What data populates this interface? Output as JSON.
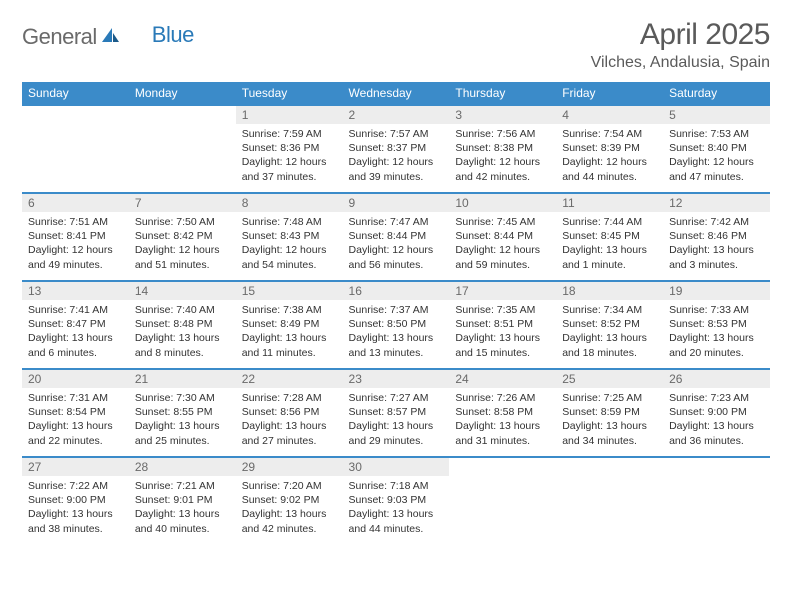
{
  "brand": {
    "left": "General",
    "right": "Blue"
  },
  "header": {
    "month_title": "April 2025",
    "location": "Vilches, Andalusia, Spain"
  },
  "colors": {
    "header_bg": "#3b8bc9",
    "header_text": "#ffffff",
    "daynum_bg": "#ededed",
    "daynum_text": "#6a6a6a",
    "cell_border": "#3b8bc9",
    "body_text": "#333333",
    "title_text": "#5a5a5a",
    "logo_gray": "#6a6a6a",
    "logo_blue": "#2a7ab8"
  },
  "day_names": [
    "Sunday",
    "Monday",
    "Tuesday",
    "Wednesday",
    "Thursday",
    "Friday",
    "Saturday"
  ],
  "weeks": [
    [
      null,
      null,
      {
        "n": "1",
        "sr": "7:59 AM",
        "ss": "8:36 PM",
        "dl": "12 hours and 37 minutes."
      },
      {
        "n": "2",
        "sr": "7:57 AM",
        "ss": "8:37 PM",
        "dl": "12 hours and 39 minutes."
      },
      {
        "n": "3",
        "sr": "7:56 AM",
        "ss": "8:38 PM",
        "dl": "12 hours and 42 minutes."
      },
      {
        "n": "4",
        "sr": "7:54 AM",
        "ss": "8:39 PM",
        "dl": "12 hours and 44 minutes."
      },
      {
        "n": "5",
        "sr": "7:53 AM",
        "ss": "8:40 PM",
        "dl": "12 hours and 47 minutes."
      }
    ],
    [
      {
        "n": "6",
        "sr": "7:51 AM",
        "ss": "8:41 PM",
        "dl": "12 hours and 49 minutes."
      },
      {
        "n": "7",
        "sr": "7:50 AM",
        "ss": "8:42 PM",
        "dl": "12 hours and 51 minutes."
      },
      {
        "n": "8",
        "sr": "7:48 AM",
        "ss": "8:43 PM",
        "dl": "12 hours and 54 minutes."
      },
      {
        "n": "9",
        "sr": "7:47 AM",
        "ss": "8:44 PM",
        "dl": "12 hours and 56 minutes."
      },
      {
        "n": "10",
        "sr": "7:45 AM",
        "ss": "8:44 PM",
        "dl": "12 hours and 59 minutes."
      },
      {
        "n": "11",
        "sr": "7:44 AM",
        "ss": "8:45 PM",
        "dl": "13 hours and 1 minute."
      },
      {
        "n": "12",
        "sr": "7:42 AM",
        "ss": "8:46 PM",
        "dl": "13 hours and 3 minutes."
      }
    ],
    [
      {
        "n": "13",
        "sr": "7:41 AM",
        "ss": "8:47 PM",
        "dl": "13 hours and 6 minutes."
      },
      {
        "n": "14",
        "sr": "7:40 AM",
        "ss": "8:48 PM",
        "dl": "13 hours and 8 minutes."
      },
      {
        "n": "15",
        "sr": "7:38 AM",
        "ss": "8:49 PM",
        "dl": "13 hours and 11 minutes."
      },
      {
        "n": "16",
        "sr": "7:37 AM",
        "ss": "8:50 PM",
        "dl": "13 hours and 13 minutes."
      },
      {
        "n": "17",
        "sr": "7:35 AM",
        "ss": "8:51 PM",
        "dl": "13 hours and 15 minutes."
      },
      {
        "n": "18",
        "sr": "7:34 AM",
        "ss": "8:52 PM",
        "dl": "13 hours and 18 minutes."
      },
      {
        "n": "19",
        "sr": "7:33 AM",
        "ss": "8:53 PM",
        "dl": "13 hours and 20 minutes."
      }
    ],
    [
      {
        "n": "20",
        "sr": "7:31 AM",
        "ss": "8:54 PM",
        "dl": "13 hours and 22 minutes."
      },
      {
        "n": "21",
        "sr": "7:30 AM",
        "ss": "8:55 PM",
        "dl": "13 hours and 25 minutes."
      },
      {
        "n": "22",
        "sr": "7:28 AM",
        "ss": "8:56 PM",
        "dl": "13 hours and 27 minutes."
      },
      {
        "n": "23",
        "sr": "7:27 AM",
        "ss": "8:57 PM",
        "dl": "13 hours and 29 minutes."
      },
      {
        "n": "24",
        "sr": "7:26 AM",
        "ss": "8:58 PM",
        "dl": "13 hours and 31 minutes."
      },
      {
        "n": "25",
        "sr": "7:25 AM",
        "ss": "8:59 PM",
        "dl": "13 hours and 34 minutes."
      },
      {
        "n": "26",
        "sr": "7:23 AM",
        "ss": "9:00 PM",
        "dl": "13 hours and 36 minutes."
      }
    ],
    [
      {
        "n": "27",
        "sr": "7:22 AM",
        "ss": "9:00 PM",
        "dl": "13 hours and 38 minutes."
      },
      {
        "n": "28",
        "sr": "7:21 AM",
        "ss": "9:01 PM",
        "dl": "13 hours and 40 minutes."
      },
      {
        "n": "29",
        "sr": "7:20 AM",
        "ss": "9:02 PM",
        "dl": "13 hours and 42 minutes."
      },
      {
        "n": "30",
        "sr": "7:18 AM",
        "ss": "9:03 PM",
        "dl": "13 hours and 44 minutes."
      },
      null,
      null,
      null
    ]
  ],
  "labels": {
    "sunrise": "Sunrise:",
    "sunset": "Sunset:",
    "daylight": "Daylight:"
  }
}
